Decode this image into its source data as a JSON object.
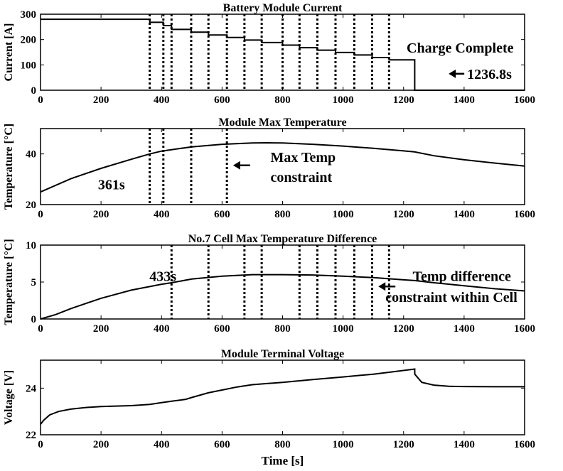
{
  "chart_data": [
    {
      "type": "line",
      "title": "Battery Module Current",
      "xlabel": "",
      "ylabel": "Current [A]",
      "xlim": [
        0,
        1600
      ],
      "ylim": [
        0,
        300
      ],
      "xticks": [
        "0",
        "200",
        "400",
        "600",
        "800",
        "1000",
        "1200",
        "1400",
        "1600"
      ],
      "yticks": [
        "0",
        "100",
        "200",
        "300"
      ],
      "series": [
        {
          "name": "Current",
          "x": [
            0,
            361,
            361,
            406,
            406,
            433,
            433,
            498,
            498,
            555,
            555,
            616,
            616,
            674,
            674,
            731,
            731,
            800,
            800,
            856,
            856,
            915,
            915,
            975,
            975,
            1037,
            1037,
            1096,
            1096,
            1152,
            1152,
            1236.8,
            1236.8,
            1600
          ],
          "y": [
            280,
            280,
            268,
            268,
            255,
            255,
            240,
            240,
            229,
            229,
            218,
            218,
            208,
            208,
            198,
            198,
            188,
            188,
            178,
            178,
            168,
            168,
            158,
            158,
            149,
            149,
            139,
            139,
            129,
            129,
            120,
            120,
            0,
            0
          ]
        }
      ],
      "vlines": [
        361,
        406,
        433,
        498,
        555,
        616,
        674,
        731,
        800,
        856,
        915,
        975,
        1037,
        1096,
        1152
      ],
      "annotations": [
        {
          "text": "Charge Complete",
          "x": 1210,
          "y": 168
        },
        {
          "text": "1236.8s",
          "x": 1410,
          "y": 65,
          "arrow": true
        }
      ]
    },
    {
      "type": "line",
      "title": "Module Max Temperature",
      "xlabel": "",
      "ylabel": "Temperature [°C]",
      "xlim": [
        0,
        1600
      ],
      "ylim": [
        20,
        50
      ],
      "xticks": [
        "0",
        "200",
        "400",
        "600",
        "800",
        "1000",
        "1200",
        "1400",
        "1600"
      ],
      "yticks": [
        "20",
        "40"
      ],
      "series": [
        {
          "name": "Max Temperature",
          "x": [
            0,
            100,
            200,
            300,
            361,
            400,
            500,
            600,
            700,
            750,
            800,
            900,
            1000,
            1100,
            1200,
            1236,
            1300,
            1400,
            1500,
            1600
          ],
          "y": [
            25,
            30.2,
            34.3,
            37.9,
            40.0,
            41.1,
            42.8,
            43.8,
            44.3,
            44.4,
            44.3,
            43.8,
            43.1,
            42.2,
            41.2,
            40.8,
            39.3,
            37.7,
            36.4,
            35.2
          ]
        }
      ],
      "vlines": [
        361,
        406,
        498,
        616
      ],
      "annotations": [
        {
          "text": "361s",
          "x": 190,
          "y": 28
        },
        {
          "text": "Max Temp",
          "x": 760,
          "y": 38.8
        },
        {
          "text": "constraint",
          "x": 760,
          "y": 30.9
        },
        {
          "text": "",
          "x": 660,
          "y": 35.5,
          "arrow": true
        }
      ]
    },
    {
      "type": "line",
      "title": "No.7 Cell Max Temperature Difference",
      "xlabel": "",
      "ylabel": "Temperature [°C]",
      "xlim": [
        0,
        1600
      ],
      "ylim": [
        0,
        10
      ],
      "xticks": [
        "0",
        "200",
        "400",
        "600",
        "800",
        "1000",
        "1200",
        "1400",
        "1600"
      ],
      "yticks": [
        "0",
        "5",
        "10"
      ],
      "series": [
        {
          "name": "Temperature Difference",
          "x": [
            0,
            50,
            100,
            200,
            300,
            400,
            433,
            500,
            600,
            700,
            800,
            900,
            1000,
            1100,
            1200,
            1236,
            1300,
            1400,
            1500,
            1600
          ],
          "y": [
            0,
            0.6,
            1.4,
            2.8,
            3.9,
            4.7,
            4.9,
            5.4,
            5.8,
            6.0,
            6.0,
            5.95,
            5.8,
            5.6,
            5.3,
            5.2,
            4.9,
            4.5,
            4.1,
            3.8
          ]
        }
      ],
      "vlines": [
        433,
        555,
        674,
        731,
        856,
        915,
        975,
        1037,
        1096,
        1152
      ],
      "annotations": [
        {
          "text": "433s",
          "x": 360,
          "y": 5.8
        },
        {
          "text": "Temp difference",
          "x": 1230,
          "y": 5.8
        },
        {
          "text": "constraint within Cell",
          "x": 1140,
          "y": 3.0
        },
        {
          "text": "",
          "x": 1140,
          "y": 4.4,
          "arrow": true
        }
      ]
    },
    {
      "type": "line",
      "title": "Module Terminal Voltage",
      "xlabel": "Time [s]",
      "ylabel": "Voltage [V]",
      "xlim": [
        0,
        1600
      ],
      "ylim": [
        22,
        25.2
      ],
      "xticks": [
        "0",
        "200",
        "400",
        "600",
        "800",
        "1000",
        "1200",
        "1400",
        "1600"
      ],
      "yticks": [
        "22",
        "24"
      ],
      "series": [
        {
          "name": "Voltage",
          "x": [
            0,
            10,
            30,
            60,
            100,
            150,
            200,
            250,
            300,
            361,
            400,
            433,
            480,
            500,
            555,
            600,
            650,
            700,
            800,
            900,
            1000,
            1100,
            1150,
            1236.8,
            1237,
            1260,
            1300,
            1350,
            1400,
            1500,
            1600
          ],
          "y": [
            22.45,
            22.62,
            22.85,
            23.0,
            23.1,
            23.17,
            23.21,
            23.23,
            23.25,
            23.3,
            23.38,
            23.44,
            23.52,
            23.6,
            23.8,
            23.92,
            24.05,
            24.15,
            24.25,
            24.37,
            24.48,
            24.6,
            24.68,
            24.82,
            24.6,
            24.25,
            24.13,
            24.08,
            24.07,
            24.06,
            24.06
          ]
        }
      ],
      "vlines": [],
      "annotations": []
    }
  ]
}
